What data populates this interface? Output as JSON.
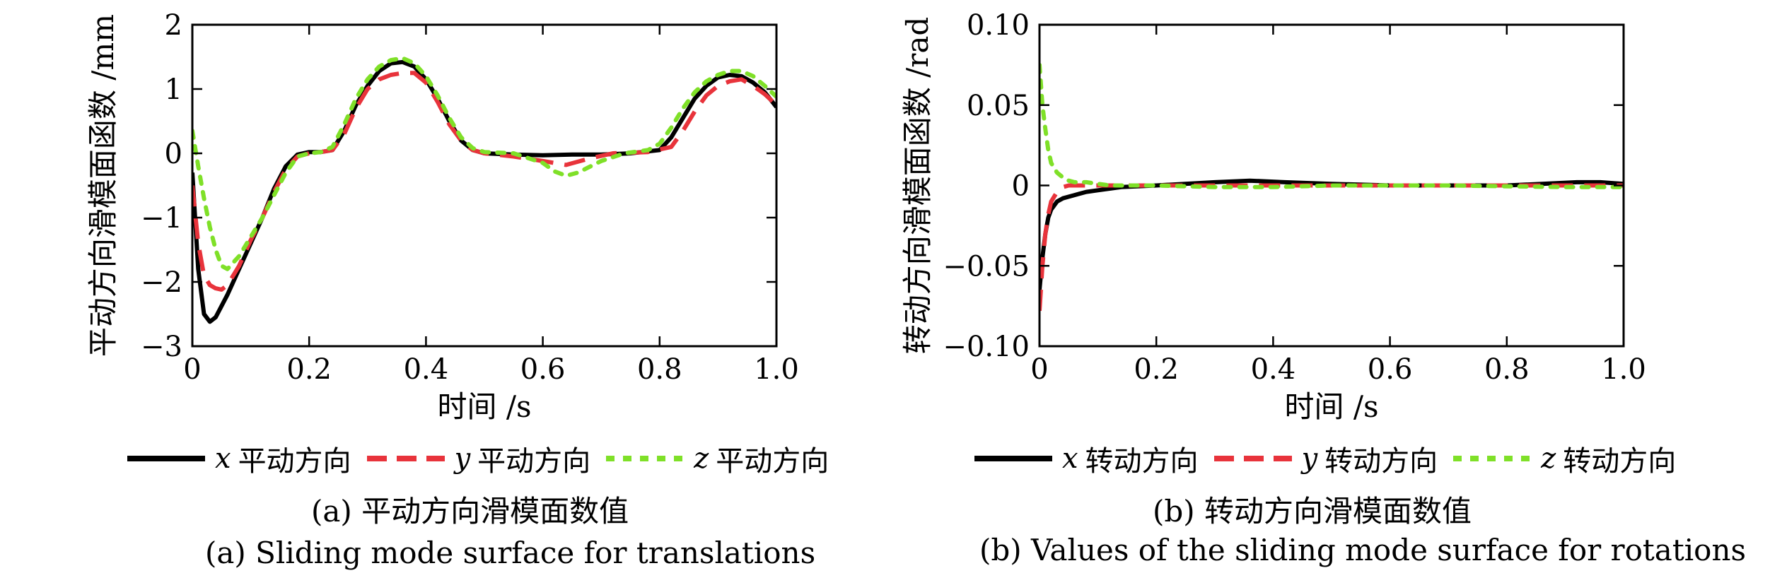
{
  "colors": {
    "x": "#000000",
    "y": "#e8333b",
    "z": "#7fe028"
  },
  "chart_data": [
    {
      "type": "line",
      "xlabel": "时间 /s",
      "ylabel": "平动方向滑模面函数 /mm",
      "xlim": [
        0,
        1.0
      ],
      "ylim": [
        -3,
        2
      ],
      "xticks": [
        "0",
        "0.2",
        "0.4",
        "0.6",
        "0.8",
        "1.0"
      ],
      "yticks": [
        "−3",
        "−2",
        "−1",
        "0",
        "1",
        "2"
      ],
      "series": [
        {
          "name": "x 平动方向",
          "var": "x",
          "label": "平动方向",
          "color": "#000000",
          "style": "solid",
          "x": [
            0,
            0.01,
            0.02,
            0.03,
            0.04,
            0.06,
            0.08,
            0.1,
            0.12,
            0.14,
            0.16,
            0.18,
            0.2,
            0.22,
            0.24,
            0.26,
            0.28,
            0.3,
            0.32,
            0.34,
            0.36,
            0.38,
            0.4,
            0.42,
            0.44,
            0.46,
            0.48,
            0.5,
            0.55,
            0.6,
            0.65,
            0.7,
            0.75,
            0.8,
            0.82,
            0.84,
            0.86,
            0.88,
            0.9,
            0.92,
            0.94,
            0.96,
            0.98,
            1.0
          ],
          "y": [
            -0.3,
            -1.8,
            -2.5,
            -2.62,
            -2.55,
            -2.2,
            -1.8,
            -1.4,
            -1.0,
            -0.55,
            -0.2,
            -0.02,
            0.02,
            0.02,
            0.05,
            0.35,
            0.75,
            1.05,
            1.28,
            1.4,
            1.42,
            1.35,
            1.15,
            0.85,
            0.5,
            0.2,
            0.05,
            0.0,
            -0.02,
            -0.03,
            -0.02,
            -0.02,
            0.0,
            0.05,
            0.25,
            0.55,
            0.85,
            1.05,
            1.18,
            1.22,
            1.2,
            1.1,
            0.95,
            0.72
          ]
        },
        {
          "name": "y 平动方向",
          "var": "y",
          "label": "平动方向",
          "color": "#e8333b",
          "style": "dashed",
          "x": [
            0,
            0.01,
            0.02,
            0.03,
            0.04,
            0.05,
            0.06,
            0.08,
            0.1,
            0.12,
            0.14,
            0.16,
            0.18,
            0.2,
            0.22,
            0.24,
            0.26,
            0.28,
            0.3,
            0.32,
            0.34,
            0.36,
            0.38,
            0.4,
            0.42,
            0.44,
            0.46,
            0.48,
            0.5,
            0.55,
            0.6,
            0.64,
            0.68,
            0.72,
            0.78,
            0.82,
            0.84,
            0.86,
            0.88,
            0.9,
            0.92,
            0.94,
            0.96,
            0.98,
            1.0
          ],
          "y": [
            -0.5,
            -1.4,
            -1.9,
            -2.05,
            -2.1,
            -2.12,
            -2.05,
            -1.75,
            -1.35,
            -1.0,
            -0.6,
            -0.25,
            -0.05,
            0.0,
            0.02,
            0.05,
            0.3,
            0.7,
            1.0,
            1.15,
            1.22,
            1.25,
            1.25,
            1.1,
            0.8,
            0.45,
            0.2,
            0.05,
            0.0,
            -0.05,
            -0.12,
            -0.18,
            -0.08,
            0.0,
            0.02,
            0.1,
            0.35,
            0.65,
            0.9,
            1.05,
            1.12,
            1.15,
            1.05,
            0.92,
            0.75
          ]
        },
        {
          "name": "z 平动方向",
          "var": "z",
          "label": "平动方向",
          "color": "#7fe028",
          "style": "dotted",
          "x": [
            0,
            0.01,
            0.02,
            0.03,
            0.04,
            0.05,
            0.06,
            0.07,
            0.08,
            0.1,
            0.12,
            0.14,
            0.16,
            0.18,
            0.2,
            0.22,
            0.24,
            0.26,
            0.28,
            0.3,
            0.32,
            0.34,
            0.36,
            0.38,
            0.4,
            0.42,
            0.44,
            0.46,
            0.48,
            0.5,
            0.55,
            0.6,
            0.62,
            0.64,
            0.66,
            0.7,
            0.74,
            0.78,
            0.8,
            0.82,
            0.84,
            0.86,
            0.88,
            0.9,
            0.92,
            0.94,
            0.96,
            0.98,
            1.0
          ],
          "y": [
            0.35,
            -0.2,
            -0.7,
            -1.15,
            -1.5,
            -1.75,
            -1.8,
            -1.7,
            -1.6,
            -1.3,
            -1.0,
            -0.65,
            -0.3,
            -0.05,
            0.0,
            0.02,
            0.1,
            0.45,
            0.85,
            1.15,
            1.35,
            1.45,
            1.48,
            1.4,
            1.2,
            0.9,
            0.55,
            0.25,
            0.08,
            0.02,
            0.0,
            -0.15,
            -0.28,
            -0.35,
            -0.3,
            -0.12,
            0.0,
            0.05,
            0.15,
            0.4,
            0.7,
            0.95,
            1.12,
            1.22,
            1.28,
            1.28,
            1.2,
            1.05,
            0.88
          ]
        }
      ]
    },
    {
      "type": "line",
      "xlabel": "时间 /s",
      "ylabel": "转动方向滑模面函数 /rad",
      "xlim": [
        0,
        1.0
      ],
      "ylim": [
        -0.1,
        0.1
      ],
      "xticks": [
        "0",
        "0.2",
        "0.4",
        "0.6",
        "0.8",
        "1.0"
      ],
      "yticks": [
        "−0.10",
        "−0.05",
        "0",
        "0.05",
        "0.10"
      ],
      "series": [
        {
          "name": "x 转动方向",
          "var": "x",
          "label": "转动方向",
          "color": "#000000",
          "style": "solid",
          "x": [
            0,
            0.005,
            0.01,
            0.015,
            0.02,
            0.03,
            0.04,
            0.06,
            0.08,
            0.1,
            0.14,
            0.2,
            0.3,
            0.36,
            0.42,
            0.5,
            0.6,
            0.7,
            0.8,
            0.86,
            0.92,
            0.96,
            1.0
          ],
          "y": [
            -0.065,
            -0.045,
            -0.03,
            -0.02,
            -0.015,
            -0.01,
            -0.008,
            -0.006,
            -0.004,
            -0.003,
            -0.001,
            0.0,
            0.002,
            0.003,
            0.002,
            0.001,
            0.0,
            0.0,
            0.0,
            0.001,
            0.002,
            0.002,
            0.001
          ]
        },
        {
          "name": "y 转动方向",
          "var": "y",
          "label": "转动方向",
          "color": "#e8333b",
          "style": "dashed",
          "x": [
            0,
            0.005,
            0.01,
            0.015,
            0.02,
            0.03,
            0.04,
            0.05,
            0.06,
            0.08,
            0.1,
            0.15,
            0.3,
            0.5,
            0.7,
            0.9,
            1.0
          ],
          "y": [
            -0.078,
            -0.05,
            -0.03,
            -0.018,
            -0.01,
            -0.004,
            -0.001,
            0.0,
            0.0,
            0.0,
            0.0,
            0.0,
            0.0,
            0.0,
            0.0,
            0.0,
            0.0
          ]
        },
        {
          "name": "z 转动方向",
          "var": "z",
          "label": "转动方向",
          "color": "#7fe028",
          "style": "dotted",
          "x": [
            0,
            0.005,
            0.01,
            0.015,
            0.02,
            0.03,
            0.04,
            0.05,
            0.06,
            0.08,
            0.1,
            0.12,
            0.2,
            0.3,
            0.4,
            0.5,
            0.7,
            0.9,
            1.0
          ],
          "y": [
            0.075,
            0.05,
            0.035,
            0.022,
            0.014,
            0.008,
            0.005,
            0.003,
            0.002,
            0.002,
            0.001,
            0.0,
            0.0,
            -0.001,
            -0.001,
            0.0,
            0.0,
            -0.001,
            -0.001
          ]
        }
      ]
    }
  ],
  "captions": {
    "a_cn": "(a) 平动方向滑模面数值",
    "a_en": "(a) Sliding mode surface for translations",
    "b_cn": "(b) 转动方向滑模面数值",
    "b_en": "(b) Values of the sliding mode surface for rotations"
  }
}
